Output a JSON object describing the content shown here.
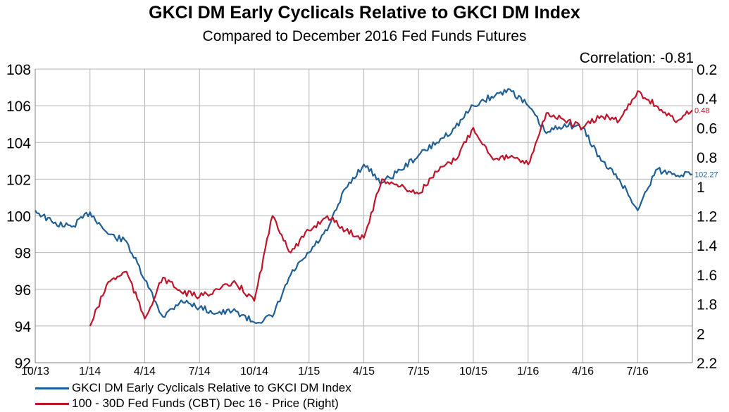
{
  "chart_data": {
    "type": "line",
    "title": "GKCI DM Early Cyclicals Relative to GKCI DM Index",
    "subtitle": "Compared to December 2016 Fed Funds Futures",
    "annotation": "Correlation: -0.81",
    "x_ticks": [
      "10/13",
      "1/14",
      "4/14",
      "7/14",
      "10/14",
      "1/15",
      "4/15",
      "7/15",
      "10/15",
      "1/16",
      "4/16",
      "7/16"
    ],
    "y_left": {
      "range": [
        92,
        108
      ],
      "ticks": [
        "108",
        "106",
        "104",
        "102",
        "100",
        "98",
        "96",
        "94",
        "92"
      ]
    },
    "y_right": {
      "range": [
        2.2,
        0.2
      ],
      "inverted": true,
      "ticks": [
        "0.2",
        "0.4",
        "0.6",
        "0.8",
        "1",
        "1.2",
        "1.4",
        "1.6",
        "1.8",
        "2",
        "2.2"
      ]
    },
    "grid": true,
    "legend_position": "bottom-left",
    "series": [
      {
        "name": "GKCI DM Early Cyclicals Relative to GKCI DM Index",
        "axis": "left",
        "color": "#1f5f96",
        "end_label": "102.27",
        "points": [
          [
            "10/13",
            100.3
          ],
          [
            "11/13",
            99.6
          ],
          [
            "12/13",
            99.4
          ],
          [
            "1/14",
            100.2
          ],
          [
            "2/14",
            99.0
          ],
          [
            "3/14",
            98.6
          ],
          [
            "4/14",
            96.5
          ],
          [
            "5/14",
            94.5
          ],
          [
            "6/14",
            95.4
          ],
          [
            "7/14",
            95.0
          ],
          [
            "8/14",
            94.7
          ],
          [
            "9/14",
            94.8
          ],
          [
            "10/14",
            94.2
          ],
          [
            "11/14",
            94.5
          ],
          [
            "12/14",
            96.8
          ],
          [
            "1/15",
            98.0
          ],
          [
            "2/15",
            99.2
          ],
          [
            "3/15",
            101.5
          ],
          [
            "4/15",
            102.8
          ],
          [
            "5/15",
            101.8
          ],
          [
            "6/15",
            102.5
          ],
          [
            "7/15",
            103.3
          ],
          [
            "8/15",
            104.0
          ],
          [
            "9/15",
            104.8
          ],
          [
            "10/15",
            106.0
          ],
          [
            "11/15",
            106.5
          ],
          [
            "12/15",
            106.9
          ],
          [
            "1/16",
            106.0
          ],
          [
            "2/16",
            104.5
          ],
          [
            "3/16",
            105.0
          ],
          [
            "4/16",
            104.8
          ],
          [
            "5/16",
            103.0
          ],
          [
            "6/16",
            102.0
          ],
          [
            "7/16",
            100.3
          ],
          [
            "8/16",
            102.5
          ],
          [
            "9/16",
            102.3
          ],
          [
            "10/16",
            102.27
          ]
        ]
      },
      {
        "name": "100 - 30D Fed Funds (CBT) Dec 16 - Price  (Right)",
        "axis": "right",
        "color": "#c0142a",
        "end_label": "0.48",
        "points": [
          [
            "1/14",
            1.95
          ],
          [
            "2/14",
            1.65
          ],
          [
            "3/14",
            1.58
          ],
          [
            "4/14",
            1.9
          ],
          [
            "5/14",
            1.62
          ],
          [
            "6/14",
            1.72
          ],
          [
            "7/14",
            1.75
          ],
          [
            "8/14",
            1.7
          ],
          [
            "9/14",
            1.66
          ],
          [
            "10/14",
            1.78
          ],
          [
            "11/14",
            1.2
          ],
          [
            "12/14",
            1.45
          ],
          [
            "1/15",
            1.3
          ],
          [
            "2/15",
            1.2
          ],
          [
            "3/15",
            1.3
          ],
          [
            "4/15",
            1.35
          ],
          [
            "5/15",
            0.95
          ],
          [
            "6/15",
            1.0
          ],
          [
            "7/15",
            1.05
          ],
          [
            "8/15",
            0.9
          ],
          [
            "9/15",
            0.82
          ],
          [
            "10/15",
            0.6
          ],
          [
            "11/15",
            0.8
          ],
          [
            "12/15",
            0.8
          ],
          [
            "1/16",
            0.85
          ],
          [
            "2/16",
            0.5
          ],
          [
            "3/16",
            0.55
          ],
          [
            "4/16",
            0.6
          ],
          [
            "5/16",
            0.52
          ],
          [
            "6/16",
            0.55
          ],
          [
            "7/16",
            0.35
          ],
          [
            "8/16",
            0.45
          ],
          [
            "9/16",
            0.55
          ],
          [
            "10/16",
            0.48
          ]
        ]
      }
    ]
  }
}
